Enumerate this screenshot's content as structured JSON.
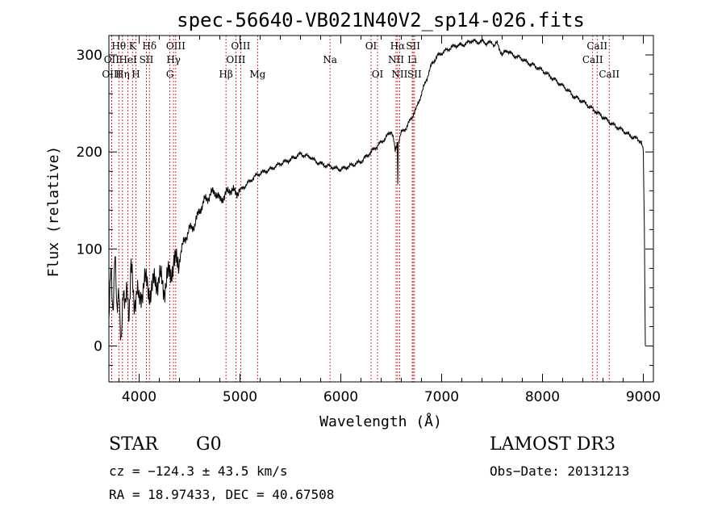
{
  "chart_data": {
    "type": "line",
    "title": "spec-56640-VB021N40V2_sp14-026.fits",
    "xlabel": "Wavelength (Å)",
    "ylabel": "Flux (relative)",
    "xlim": [
      3700,
      9100
    ],
    "ylim": [
      -37,
      320
    ],
    "xticks": [
      4000,
      5000,
      6000,
      7000,
      8000,
      9000
    ],
    "yticks": [
      0,
      100,
      200,
      300
    ],
    "series": [
      {
        "name": "spectrum",
        "x": [
          3700,
          3720,
          3740,
          3760,
          3780,
          3800,
          3820,
          3840,
          3860,
          3880,
          3900,
          3920,
          3950,
          3980,
          4000,
          4050,
          4100,
          4150,
          4200,
          4250,
          4300,
          4350,
          4400,
          4450,
          4500,
          4550,
          4600,
          4650,
          4700,
          4750,
          4800,
          4850,
          4900,
          4950,
          5000,
          5050,
          5100,
          5150,
          5200,
          5250,
          5300,
          5350,
          5400,
          5450,
          5500,
          5550,
          5600,
          5650,
          5700,
          5750,
          5800,
          5850,
          5900,
          5950,
          6000,
          6050,
          6100,
          6150,
          6200,
          6250,
          6300,
          6350,
          6400,
          6450,
          6500,
          6520,
          6540,
          6560,
          6565,
          6570,
          6600,
          6650,
          6700,
          6750,
          6800,
          6850,
          6900,
          6950,
          7000,
          7050,
          7100,
          7150,
          7200,
          7250,
          7300,
          7350,
          7400,
          7450,
          7500,
          7520,
          7550,
          7600,
          7650,
          7700,
          7750,
          7800,
          7850,
          7900,
          7950,
          8000,
          8050,
          8100,
          8150,
          8200,
          8250,
          8300,
          8350,
          8400,
          8450,
          8500,
          8550,
          8600,
          8650,
          8700,
          8750,
          8800,
          8850,
          8900,
          8950,
          8980,
          9000,
          9010,
          9020
        ],
        "values": [
          20,
          80,
          40,
          100,
          25,
          60,
          10,
          50,
          35,
          70,
          30,
          80,
          45,
          60,
          40,
          70,
          55,
          65,
          70,
          60,
          75,
          85,
          90,
          110,
          120,
          125,
          140,
          150,
          155,
          160,
          150,
          155,
          162,
          158,
          160,
          165,
          170,
          175,
          178,
          180,
          182,
          185,
          188,
          190,
          192,
          195,
          198,
          196,
          195,
          190,
          188,
          186,
          185,
          183,
          182,
          184,
          186,
          188,
          190,
          195,
          200,
          205,
          210,
          215,
          222,
          215,
          200,
          210,
          170,
          210,
          220,
          225,
          235,
          245,
          260,
          275,
          290,
          298,
          302,
          305,
          308,
          310,
          310,
          312,
          315,
          313,
          314,
          312,
          313,
          310,
          312,
          300,
          305,
          300,
          298,
          296,
          292,
          290,
          287,
          284,
          280,
          276,
          272,
          268,
          264,
          258,
          255,
          252,
          248,
          244,
          240,
          236,
          232,
          228,
          225,
          222,
          218,
          215,
          213,
          210,
          200,
          120,
          0
        ]
      }
    ],
    "spectral_lines": [
      {
        "name": "Hθ",
        "wavelength": 3798,
        "row": 1
      },
      {
        "name": "OII",
        "wavelength": 3727,
        "row": 2
      },
      {
        "name": "OIII",
        "wavelength": 3727,
        "row": 3
      },
      {
        "name": "K",
        "wavelength": 3934,
        "row": 1
      },
      {
        "name": "HeI",
        "wavelength": 3889,
        "row": 2
      },
      {
        "name": "Hη",
        "wavelength": 3835,
        "row": 3
      },
      {
        "name": "Hδ",
        "wavelength": 4102,
        "row": 1
      },
      {
        "name": "SII",
        "wavelength": 4072,
        "row": 2
      },
      {
        "name": "H",
        "wavelength": 3968,
        "row": 3
      },
      {
        "name": "OIII",
        "wavelength": 4363,
        "row": 1
      },
      {
        "name": "Hγ",
        "wavelength": 4341,
        "row": 2
      },
      {
        "name": "G",
        "wavelength": 4305,
        "row": 3
      },
      {
        "name": "Hβ",
        "wavelength": 4861,
        "row": 3
      },
      {
        "name": "OIII",
        "wavelength": 5007,
        "row": 1
      },
      {
        "name": "OIII",
        "wavelength": 4959,
        "row": 2
      },
      {
        "name": "Mg",
        "wavelength": 5175,
        "row": 3
      },
      {
        "name": "Na",
        "wavelength": 5893,
        "row": 2
      },
      {
        "name": "OI",
        "wavelength": 6300,
        "row": 1
      },
      {
        "name": "OI",
        "wavelength": 6364,
        "row": 3
      },
      {
        "name": "Hα",
        "wavelength": 6563,
        "row": 1
      },
      {
        "name": "NII",
        "wavelength": 6548,
        "row": 2
      },
      {
        "name": "NII",
        "wavelength": 6583,
        "row": 3
      },
      {
        "name": "SII",
        "wavelength": 6717,
        "row": 1
      },
      {
        "name": "Li",
        "wavelength": 6708,
        "row": 2
      },
      {
        "name": "SII",
        "wavelength": 6731,
        "row": 3
      },
      {
        "name": "CaII",
        "wavelength": 8542,
        "row": 1
      },
      {
        "name": "CaII",
        "wavelength": 8498,
        "row": 2
      },
      {
        "name": "CaII",
        "wavelength": 8662,
        "row": 3
      }
    ]
  },
  "footer": {
    "object_class": "STAR",
    "subclass": "G0",
    "survey": "LAMOST DR3",
    "cz": "cz = −124.3 ± 43.5 km/s",
    "obs_date": "Obs−Date: 20131213",
    "coords": "RA =  18.97433, DEC =  40.67508"
  },
  "colors": {
    "spectrum": "#000000",
    "line_markers": "#cc0000",
    "axes": "#000000"
  }
}
